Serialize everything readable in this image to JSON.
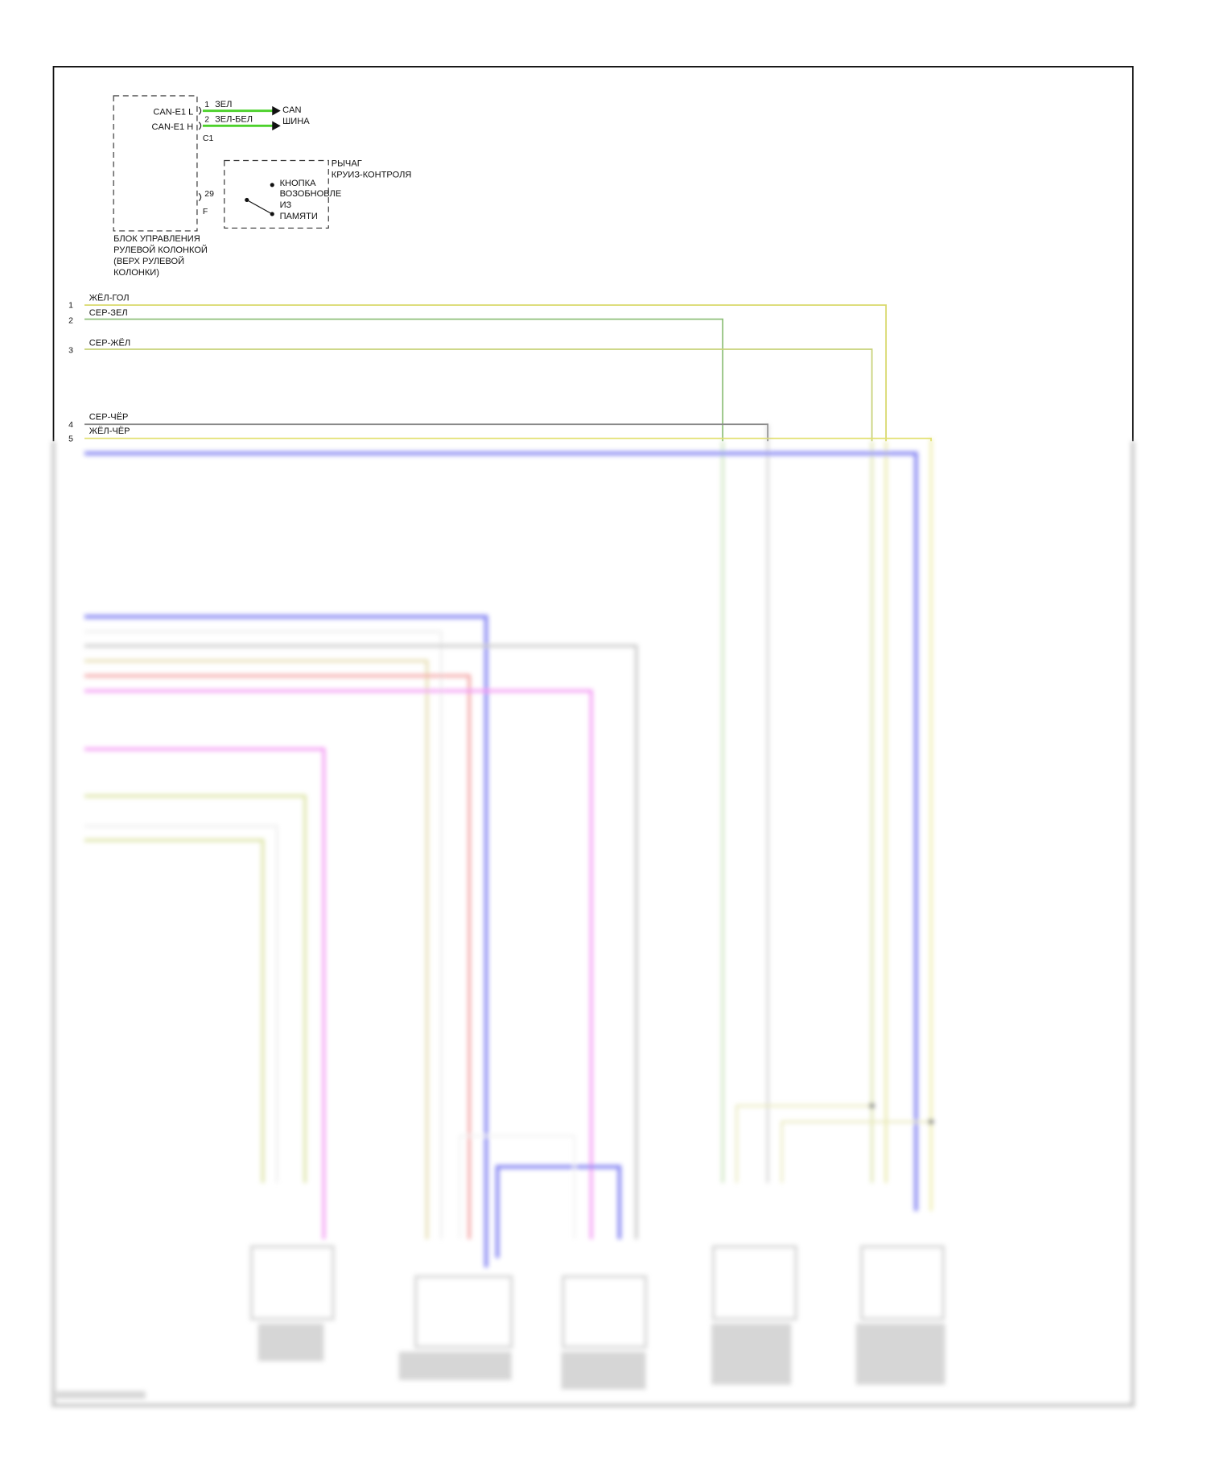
{
  "module": {
    "name_lines": [
      "БЛОК УПРАВЛЕНИЯ",
      "РУЛЕВОЙ КОЛОНКОЙ",
      "(ВЕРХ РУЛЕВОЙ",
      "КОЛОНКИ)"
    ],
    "pins": [
      {
        "signal": "CAN-E1 L",
        "pin": "1",
        "wire": "ЗЕЛ"
      },
      {
        "signal": "CAN-E1 H",
        "pin": "2",
        "wire": "ЗЕЛ-БЕЛ"
      }
    ],
    "connector_c1": "C1",
    "pin_29": "29",
    "connector_f": "F",
    "can_bus_lines": [
      "CAN",
      "ШИНА"
    ]
  },
  "cruise_lever": {
    "title_lines": [
      "РЫЧАГ",
      "КРУИЗ-КОНТРОЛЯ"
    ],
    "switch_lines": [
      "КНОПКА",
      "ВОЗОБНОВЛЕ",
      "ИЗ",
      "ПАМЯТИ"
    ]
  },
  "wires": [
    {
      "pin": "1",
      "color_name": "ЖЁЛ-ГОЛ",
      "color": "#d8d86a"
    },
    {
      "pin": "2",
      "color_name": "СЕР-ЗЕЛ",
      "color": "#8fc07a"
    },
    {
      "pin": "3",
      "color_name": "СЕР-ЖЁЛ",
      "color": "#c8d27a"
    },
    {
      "pin": "4",
      "color_name": "СЕР-ЧЁР",
      "color": "#888888"
    },
    {
      "pin": "5",
      "color_name": "ЖЁЛ-ЧЁР",
      "color": "#e2e070"
    }
  ],
  "colors": {
    "can_green": "#4cd12a",
    "blue": "#6b6bf0",
    "magenta": "#f07cf0",
    "red": "#f08a8a",
    "gray": "#b8b8b8",
    "tan": "#e0d6a0",
    "yellow_green": "#d2dc8c"
  }
}
